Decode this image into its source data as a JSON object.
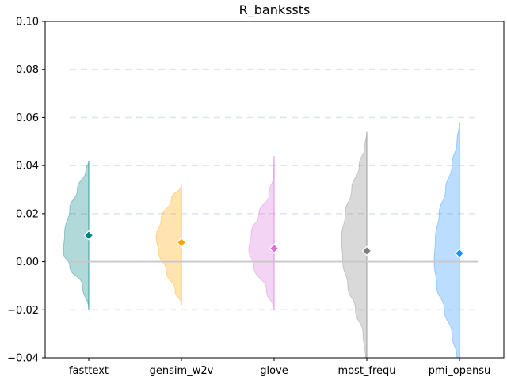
{
  "chart_data": {
    "type": "violin",
    "title": "R_bankssts",
    "xlabel": "",
    "ylabel": "",
    "ylim": [
      -0.04,
      0.1
    ],
    "yticks": [
      -0.04,
      -0.02,
      0.0,
      0.02,
      0.04,
      0.06,
      0.08,
      0.1
    ],
    "ytick_labels": [
      "−0.04",
      "−0.02",
      "0.00",
      "0.02",
      "0.04",
      "0.06",
      "0.08",
      "0.10"
    ],
    "categories": [
      "fasttext",
      "gensim_w2v",
      "glove",
      "most_frequ",
      "pmi_opensu"
    ],
    "grid": "horizontal dashed",
    "baseline": 0.0,
    "series": [
      {
        "category": "fasttext",
        "color": "#008080",
        "mean": 0.011,
        "range": [
          -0.02,
          0.042
        ],
        "profile": [
          [
            -0.02,
            0.0
          ],
          [
            -0.01,
            0.25
          ],
          [
            -0.002,
            0.75
          ],
          [
            0.004,
            1.0
          ],
          [
            0.012,
            0.95
          ],
          [
            0.022,
            0.75
          ],
          [
            0.03,
            0.45
          ],
          [
            0.038,
            0.12
          ],
          [
            0.042,
            0.0
          ]
        ]
      },
      {
        "category": "gensim_w2v",
        "color": "#FFA500",
        "mean": 0.008,
        "range": [
          -0.018,
          0.032
        ],
        "profile": [
          [
            -0.018,
            0.0
          ],
          [
            -0.012,
            0.25
          ],
          [
            -0.004,
            0.6
          ],
          [
            0.004,
            0.9
          ],
          [
            0.01,
            1.0
          ],
          [
            0.018,
            0.8
          ],
          [
            0.026,
            0.4
          ],
          [
            0.032,
            0.0
          ]
        ]
      },
      {
        "category": "glove",
        "color": "#DA70D6",
        "mean": 0.0055,
        "range": [
          -0.02,
          0.044
        ],
        "profile": [
          [
            -0.02,
            0.0
          ],
          [
            -0.012,
            0.3
          ],
          [
            -0.002,
            0.8
          ],
          [
            0.005,
            1.0
          ],
          [
            0.012,
            0.9
          ],
          [
            0.02,
            0.6
          ],
          [
            0.028,
            0.2
          ],
          [
            0.036,
            0.03
          ],
          [
            0.044,
            0.0
          ]
        ]
      },
      {
        "category": "most_frequ",
        "color": "#808080",
        "mean": 0.0045,
        "range": [
          -0.04,
          0.054
        ],
        "profile": [
          [
            -0.04,
            0.05
          ],
          [
            -0.03,
            0.15
          ],
          [
            -0.02,
            0.45
          ],
          [
            -0.01,
            0.75
          ],
          [
            0.0,
            0.95
          ],
          [
            0.01,
            1.0
          ],
          [
            0.02,
            0.85
          ],
          [
            0.03,
            0.6
          ],
          [
            0.04,
            0.3
          ],
          [
            0.048,
            0.08
          ],
          [
            0.054,
            0.0
          ]
        ]
      },
      {
        "category": "pmi_opensu",
        "color": "#1E90FF",
        "mean": 0.0035,
        "range": [
          -0.04,
          0.058
        ],
        "profile": [
          [
            -0.04,
            0.1
          ],
          [
            -0.03,
            0.3
          ],
          [
            -0.02,
            0.6
          ],
          [
            -0.01,
            0.9
          ],
          [
            0.0,
            1.0
          ],
          [
            0.01,
            0.95
          ],
          [
            0.02,
            0.8
          ],
          [
            0.03,
            0.55
          ],
          [
            0.04,
            0.3
          ],
          [
            0.05,
            0.1
          ],
          [
            0.058,
            0.0
          ]
        ]
      }
    ]
  }
}
